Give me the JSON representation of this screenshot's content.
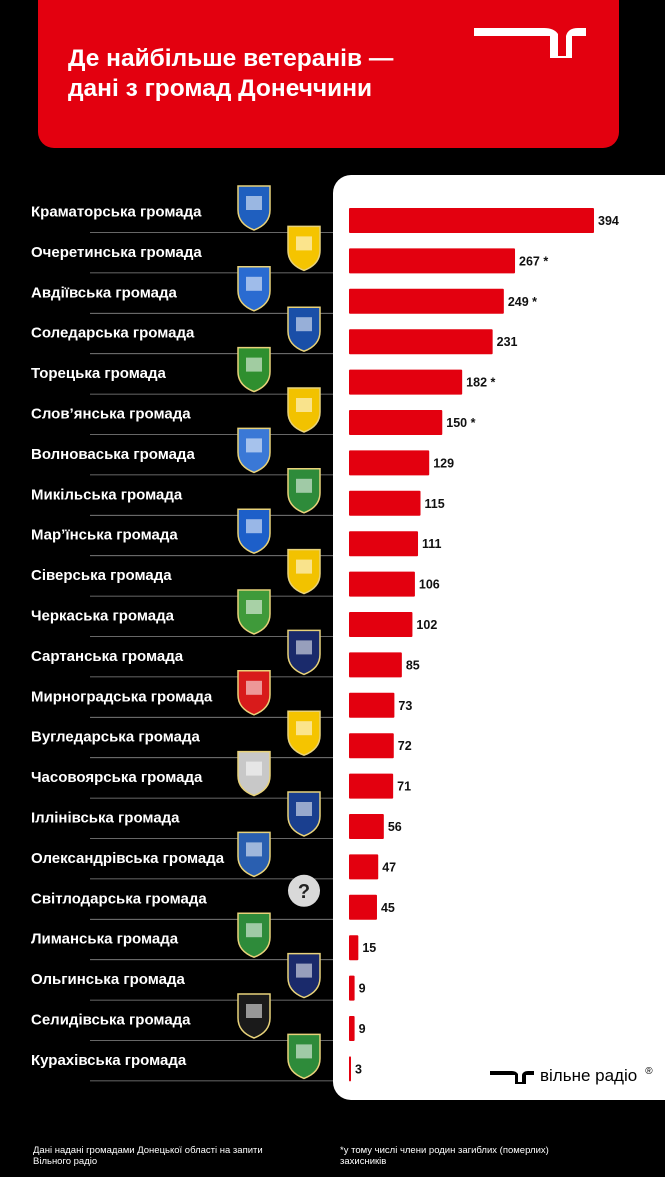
{
  "header": {
    "title_line1": "Де найбільше ветеранів —",
    "title_line2": "дані з громад Донеччини"
  },
  "colors": {
    "accent": "#e3000f",
    "background": "#000000",
    "panel": "#ffffff"
  },
  "brand": {
    "name": "вільне радіо",
    "reg": "®"
  },
  "footer": {
    "source_note": "Дані надані громадами Донецької області на запити Вільного радіо",
    "asterisk_note": "*у тому числі члени родин загиблих (померлих) захисників"
  },
  "chart_data": {
    "type": "bar",
    "orientation": "horizontal",
    "title": "Де найбільше ветеранів — дані з громад Донеччини",
    "categories": [
      "Краматорська громада",
      "Очеретинська громада",
      "Авдіївська громада",
      "Соледарська громада",
      "Торецька громада",
      "Слов’янська громада",
      "Волноваська громада",
      "Микільська громада",
      "Мар’їнська громада",
      "Сіверська громада",
      "Черкаська громада",
      "Сартанська громада",
      "Мирноградська громада",
      "Вугледарська громада",
      "Часовоярська громада",
      "Іллінівська громада",
      "Олександрівська громада",
      "Світлодарська громада",
      "Лиманська громада",
      "Ольгинська громада",
      "Селидівська громада",
      "Курахівська громада"
    ],
    "values": [
      394,
      267,
      249,
      231,
      182,
      150,
      129,
      115,
      111,
      106,
      102,
      85,
      73,
      72,
      71,
      56,
      47,
      45,
      15,
      9,
      9,
      3
    ],
    "value_labels": [
      "394",
      "267 *",
      "249 *",
      "231",
      "182 *",
      "150 *",
      "129",
      "115",
      "111",
      "106",
      "102",
      "85",
      "73",
      "72",
      "71",
      "56",
      "47",
      "45",
      "15",
      "9",
      "9",
      "3"
    ],
    "emblems": [
      "kramatorsk-emblem-icon",
      "ocheretyne-emblem-icon",
      "avdiivka-emblem-icon",
      "soledar-emblem-icon",
      "toretsk-emblem-icon",
      "sloviansk-emblem-icon",
      "volnovakha-emblem-icon",
      "mykilske-emblem-icon",
      "marinka-emblem-icon",
      "siversk-emblem-icon",
      "cherkaske-emblem-icon",
      "sartana-emblem-icon",
      "myrnohrad-emblem-icon",
      "vuhledar-emblem-icon",
      "chasiv-yar-emblem-icon",
      "illinivka-emblem-icon",
      "oleksandrivka-emblem-icon",
      "unknown-emblem-icon",
      "lyman-emblem-icon",
      "olhynka-emblem-icon",
      "selydove-emblem-icon",
      "kurakhove-emblem-icon"
    ],
    "emblem_colors": [
      "#1f5fbf",
      "#f5c400",
      "#2a6bd1",
      "#1a4fa8",
      "#2f8f2f",
      "#f2c200",
      "#3a78d6",
      "#2e8b3a",
      "#1d5fc9",
      "#f2c200",
      "#3f9a3a",
      "#1a2a6b",
      "#d81b1b",
      "#f5c400",
      "#c8c8c8",
      "#1a3f8f",
      "#2a5fb0",
      "#7a7a7a",
      "#2e8b3a",
      "#1a2a6b",
      "#1a1a1a",
      "#2e8b3a"
    ],
    "xlim": [
      0,
      394
    ]
  }
}
